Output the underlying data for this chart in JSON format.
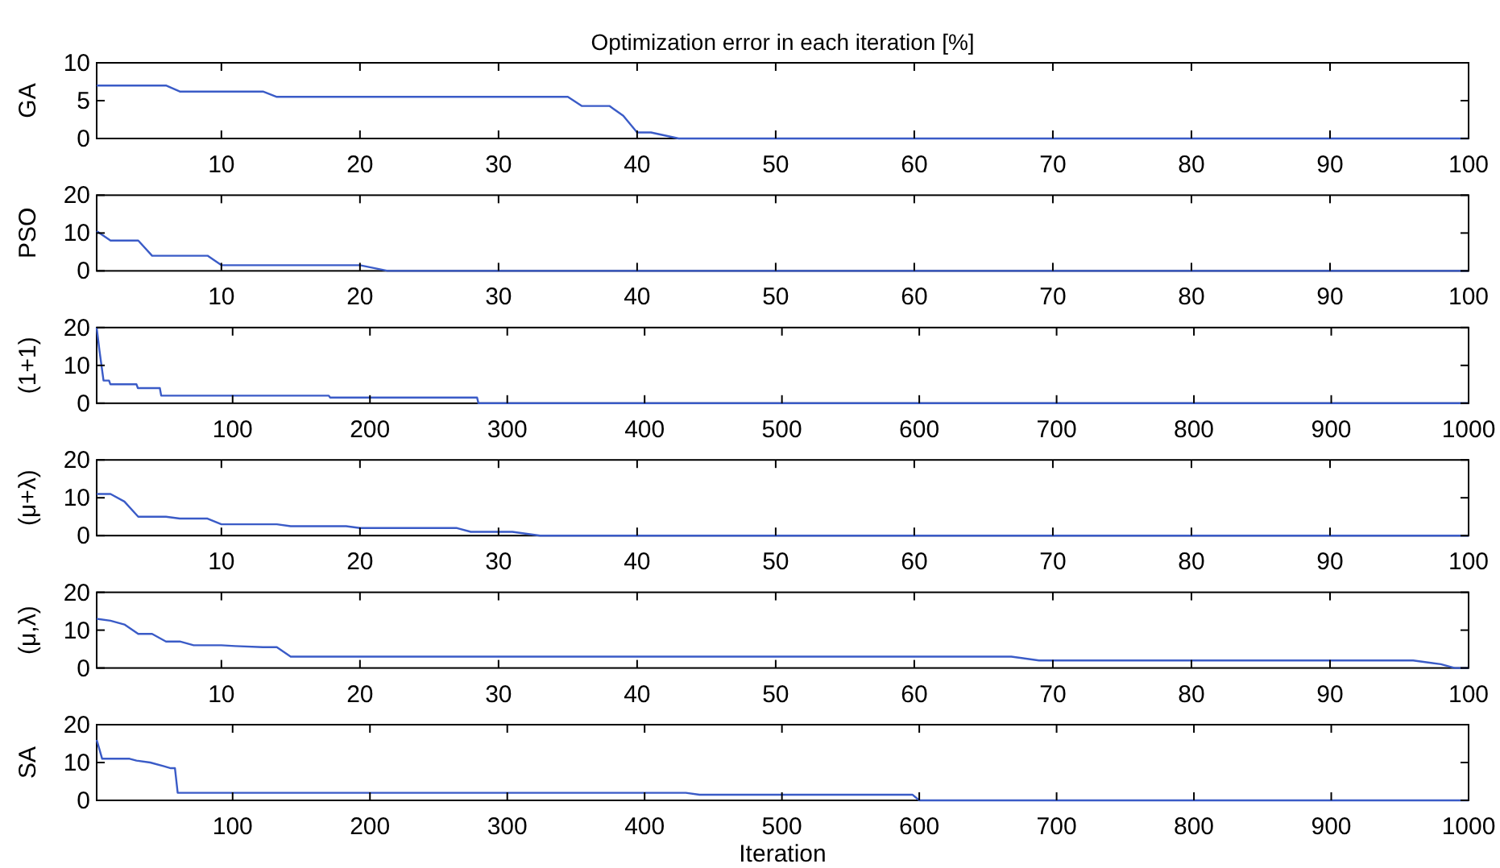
{
  "chart_data": [
    {
      "type": "line",
      "title": "Optimization error in each iteration [%]",
      "ylabel": "GA",
      "color": "#3a5bc7",
      "xlim": [
        1,
        100
      ],
      "ylim": [
        0,
        10
      ],
      "xticks": [
        10,
        20,
        30,
        40,
        50,
        60,
        70,
        80,
        90,
        100
      ],
      "yticks": [
        0,
        5,
        10
      ],
      "x": [
        1,
        6,
        7,
        13,
        14,
        35,
        36,
        38,
        39,
        40,
        41,
        43,
        100
      ],
      "values": [
        7,
        7,
        6.2,
        6.2,
        5.5,
        5.5,
        4.3,
        4.3,
        3,
        0.8,
        0.8,
        0,
        0
      ]
    },
    {
      "type": "line",
      "ylabel": "PSO",
      "color": "#3a5bc7",
      "xlim": [
        1,
        100
      ],
      "ylim": [
        0,
        20
      ],
      "xticks": [
        10,
        20,
        30,
        40,
        50,
        60,
        70,
        80,
        90,
        100
      ],
      "yticks": [
        0,
        10,
        20
      ],
      "x": [
        1,
        2,
        4,
        5,
        9,
        10,
        20,
        22,
        100
      ],
      "values": [
        10.5,
        8,
        8,
        4,
        4,
        1.5,
        1.5,
        0,
        0
      ]
    },
    {
      "type": "line",
      "ylabel": "(1+1)",
      "color": "#3a5bc7",
      "xlim": [
        1,
        1000
      ],
      "ylim": [
        0,
        20
      ],
      "xticks": [
        100,
        200,
        300,
        400,
        500,
        600,
        700,
        800,
        900,
        1000
      ],
      "yticks": [
        0,
        10,
        20
      ],
      "x": [
        1,
        3,
        6,
        10,
        11,
        30,
        31,
        47,
        48,
        170,
        171,
        278,
        279,
        1000
      ],
      "values": [
        20,
        14,
        6,
        6,
        5,
        5,
        4,
        4,
        2,
        2,
        1.5,
        1.5,
        0,
        0
      ]
    },
    {
      "type": "line",
      "ylabel": "(μ+λ)",
      "color": "#3a5bc7",
      "xlim": [
        1,
        100
      ],
      "ylim": [
        0,
        20
      ],
      "xticks": [
        10,
        20,
        30,
        40,
        50,
        60,
        70,
        80,
        90,
        100
      ],
      "yticks": [
        0,
        10,
        20
      ],
      "x": [
        1,
        2,
        3,
        4,
        6,
        7,
        9,
        10,
        14,
        15,
        19,
        20,
        27,
        28,
        31,
        33,
        100
      ],
      "values": [
        11,
        11,
        9,
        5,
        5,
        4.5,
        4.5,
        3,
        3,
        2.5,
        2.5,
        2,
        2,
        1,
        1,
        0,
        0
      ]
    },
    {
      "type": "line",
      "ylabel": "(μ,λ)",
      "color": "#3a5bc7",
      "xlim": [
        1,
        100
      ],
      "ylim": [
        0,
        20
      ],
      "xticks": [
        10,
        20,
        30,
        40,
        50,
        60,
        70,
        80,
        90,
        100
      ],
      "yticks": [
        0,
        10,
        20
      ],
      "x": [
        1,
        2,
        3,
        4,
        5,
        6,
        7,
        8,
        10,
        11,
        13,
        14,
        15,
        67,
        69,
        96,
        98,
        99,
        100
      ],
      "values": [
        13,
        12.5,
        11.5,
        9,
        9,
        7,
        7,
        6,
        6,
        5.8,
        5.5,
        5.5,
        3,
        3,
        2,
        2,
        1,
        0,
        0
      ]
    },
    {
      "type": "line",
      "ylabel": "SA",
      "xlabel": "Iteration",
      "color": "#3a5bc7",
      "xlim": [
        1,
        1000
      ],
      "ylim": [
        0,
        20
      ],
      "xticks": [
        100,
        200,
        300,
        400,
        500,
        600,
        700,
        800,
        900,
        1000
      ],
      "yticks": [
        0,
        10,
        20
      ],
      "x": [
        1,
        5,
        25,
        30,
        40,
        50,
        55,
        58,
        60,
        430,
        440,
        595,
        600,
        1000
      ],
      "values": [
        16,
        11,
        11,
        10.5,
        10,
        9,
        8.5,
        8.5,
        2,
        2,
        1.5,
        1.5,
        0,
        0
      ]
    }
  ]
}
